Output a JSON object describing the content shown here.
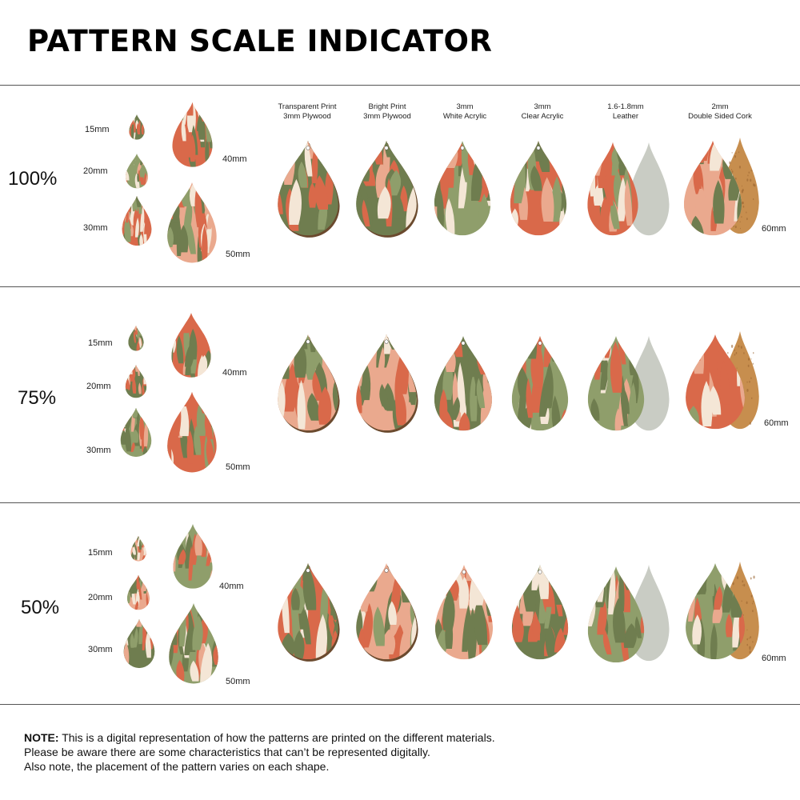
{
  "title": "PATTERN SCALE INDICATOR",
  "materials": [
    {
      "line1": "Transparent Print",
      "line2": "3mm Plywood"
    },
    {
      "line1": "Bright Print",
      "line2": "3mm Plywood"
    },
    {
      "line1": "3mm",
      "line2": "White Acrylic"
    },
    {
      "line1": "3mm",
      "line2": "Clear Acrylic"
    },
    {
      "line1": "1.6-1.8mm",
      "line2": "Leather"
    },
    {
      "line1": "2mm",
      "line2": "Double Sided Cork"
    }
  ],
  "sizes": {
    "s15": "15mm",
    "s20": "20mm",
    "s30": "30mm",
    "s40": "40mm",
    "s50": "50mm",
    "s60": "60mm"
  },
  "sections": [
    {
      "scale": "100%"
    },
    {
      "scale": "75%"
    },
    {
      "scale": "50%"
    }
  ],
  "note": {
    "label": "NOTE:",
    "line1": " This is a digital representation of how the patterns are printed on the different materials.",
    "line2": "Please be aware there are some characteristics that can’t be represented digitally.",
    "line3": "Also note, the placement of the pattern varies on each shape."
  },
  "colors": {
    "terracotta": "#d9694a",
    "sage": "#8f9e6b",
    "olive": "#6f7d4f",
    "peach": "#eaa98e",
    "cream": "#f4e6d6",
    "plywood": "#6b4a2e",
    "leather_back": "#c9ccc4",
    "cork": "#c78e4e"
  }
}
